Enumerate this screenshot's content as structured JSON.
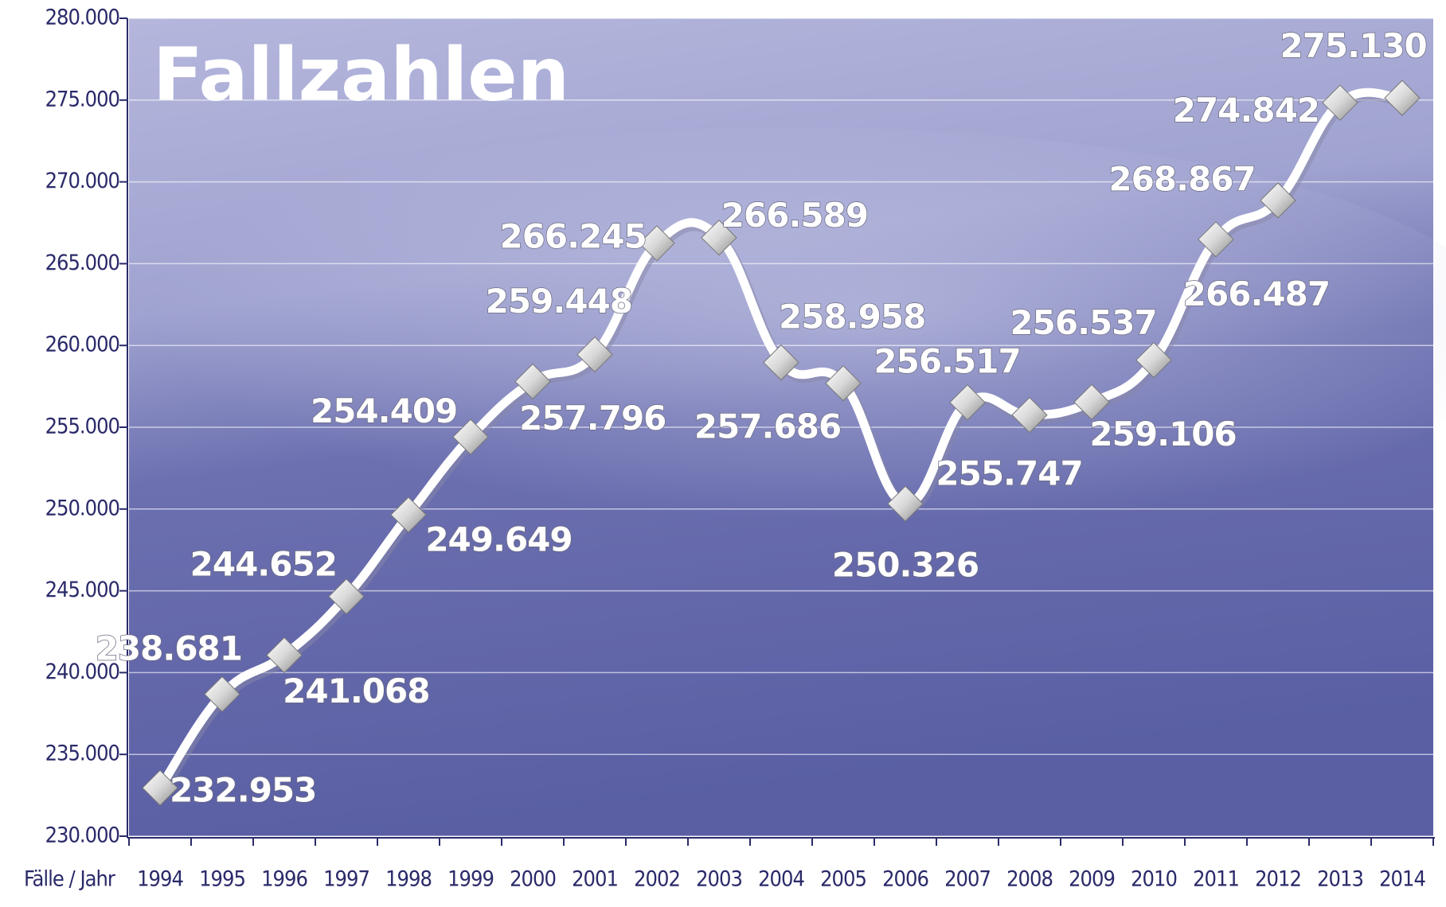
{
  "chart_data": {
    "type": "line",
    "title": "Fallzahlen",
    "x_label": "Fälle / Jahr",
    "categories": [
      "1994",
      "1995",
      "1996",
      "1997",
      "1998",
      "1999",
      "2000",
      "2001",
      "2002",
      "2003",
      "2004",
      "2005",
      "2006",
      "2007",
      "2008",
      "2009",
      "2010",
      "2011",
      "2012",
      "2013",
      "2014"
    ],
    "values": [
      232953,
      238681,
      241068,
      244652,
      249649,
      254409,
      257796,
      259448,
      266245,
      266589,
      258958,
      257686,
      250326,
      256517,
      255747,
      256537,
      259106,
      266487,
      268867,
      274842,
      275130
    ],
    "value_labels": [
      "232.953",
      "238.681",
      "241.068",
      "244.652",
      "249.649",
      "254.409",
      "257.796",
      "259.448",
      "266.245",
      "266.589",
      "258.958",
      "257.686",
      "250.326",
      "256.517",
      "255.747",
      "256.537",
      "259.106",
      "266.487",
      "268.867",
      "274.842",
      "275.130"
    ],
    "color": "#ffffff",
    "ylim": [
      230000,
      280000
    ],
    "yticks": [
      {
        "value": 230000,
        "label": "230.000"
      },
      {
        "value": 235000,
        "label": "235.000"
      },
      {
        "value": 240000,
        "label": "240.000"
      },
      {
        "value": 245000,
        "label": "245.000"
      },
      {
        "value": 250000,
        "label": "250.000"
      },
      {
        "value": 255000,
        "label": "255.000"
      },
      {
        "value": 260000,
        "label": "260.000"
      },
      {
        "value": 265000,
        "label": "265.000"
      },
      {
        "value": 270000,
        "label": "270.000"
      },
      {
        "value": 275000,
        "label": "275.000"
      },
      {
        "value": 280000,
        "label": "280.000"
      }
    ],
    "grid": true
  }
}
